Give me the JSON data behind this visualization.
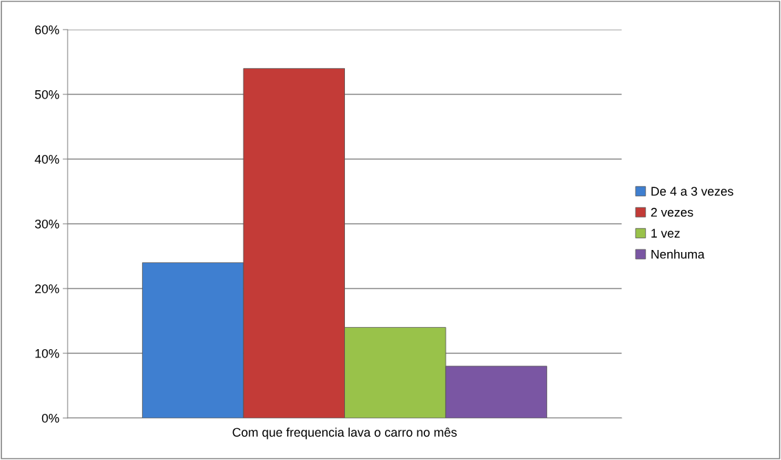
{
  "chart_data": {
    "type": "bar",
    "categories": [
      "Com que frequencia lava o carro no mês"
    ],
    "series": [
      {
        "name": "De 4 a 3 vezes",
        "color": "#3f7fd0",
        "values": [
          24
        ]
      },
      {
        "name": "2 vezes",
        "color": "#c33b37",
        "values": [
          54
        ]
      },
      {
        "name": "1 vez",
        "color": "#99c24a",
        "values": [
          14
        ]
      },
      {
        "name": "Nenhuma",
        "color": "#7a56a3",
        "values": [
          8
        ]
      }
    ],
    "ylim": [
      0,
      60
    ],
    "yticks": [
      {
        "value": 0,
        "label": "0%"
      },
      {
        "value": 10,
        "label": "10%"
      },
      {
        "value": 20,
        "label": "20%"
      },
      {
        "value": 30,
        "label": "30%"
      },
      {
        "value": 40,
        "label": "40%"
      },
      {
        "value": 50,
        "label": "50%"
      },
      {
        "value": 60,
        "label": "60%"
      }
    ],
    "grid": "y",
    "legend": "right"
  }
}
